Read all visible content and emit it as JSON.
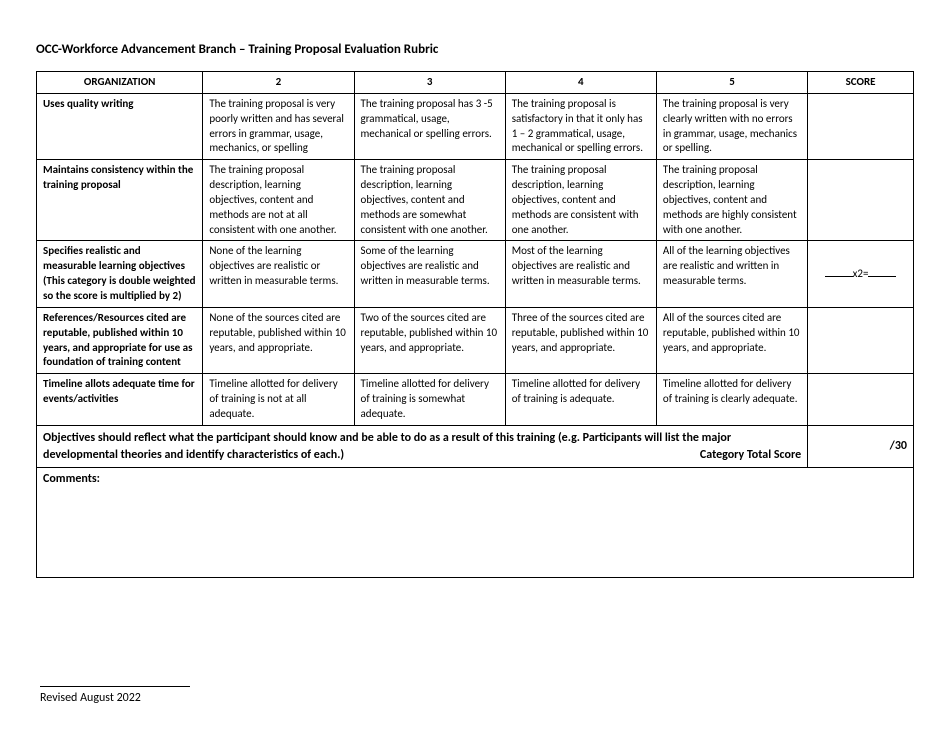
{
  "title": "OCC-Workforce Advancement Branch – Training Proposal Evaluation Rubric",
  "headers": {
    "org": "ORGANIZATION",
    "l2": "2",
    "l3": "3",
    "l4": "4",
    "l5": "5",
    "score": "SCORE"
  },
  "rows": [
    {
      "label": "Uses quality writing",
      "l2": "The training proposal is very poorly written and has several errors in grammar, usage, mechanics, or spelling",
      "l3": "The training proposal has 3 -5 grammatical, usage, mechanical or spelling errors.",
      "l4": "The training proposal is satisfactory in that it only has 1 – 2 grammatical, usage, mechanical or spelling errors.",
      "l5": "The training proposal is very clearly written with no errors in grammar, usage, mechanics or spelling.",
      "score_special": false
    },
    {
      "label": "Maintains consistency within the training proposal",
      "l2": "The training proposal description, learning objectives, content and methods are not at all consistent with one another.",
      "l3": "The training proposal description, learning objectives, content and methods are somewhat consistent with one another.",
      "l4": "The training proposal description, learning objectives, content and methods are consistent with one another.",
      "l5": "The training proposal description, learning objectives, content and methods are highly consistent with one another.",
      "score_special": false
    },
    {
      "label": "Specifies realistic and measurable learning objectives\n(This category is double weighted so the score is multiplied by 2)",
      "l2": "None of the learning objectives are realistic or written in measurable terms.",
      "l3": "Some of the learning objectives are realistic and written in measurable terms.",
      "l4": "Most of the learning objectives are realistic and written in measurable terms.",
      "l5": "All of the learning objectives are realistic and written in measurable terms.",
      "score_special": true,
      "score_text": "x2="
    },
    {
      "label": "References/Resources cited are reputable, published within 10 years, and appropriate for use as foundation of training content",
      "l2": "None of the sources cited are reputable, published within 10 years, and appropriate.",
      "l3": "Two of the sources cited are reputable, published within 10 years, and appropriate.",
      "l4": "Three of the sources cited are reputable, published within 10 years, and appropriate.",
      "l5": "All of the sources cited are reputable, published within 10 years, and appropriate.",
      "score_special": false
    },
    {
      "label": "Timeline allots adequate time for events/activities",
      "l2": "Timeline allotted for delivery of training is not at all adequate.",
      "l3": "Timeline allotted for delivery of training is somewhat adequate.",
      "l4": "Timeline allotted for delivery of training is adequate.",
      "l5": "Timeline allotted for delivery of training is clearly adequate.",
      "score_special": false
    }
  ],
  "note": "Objectives should reflect what the participant should know and be able to do as a result of this training (e.g. Participants will list the major developmental theories and identify characteristics of each.)",
  "category_total_label": "Category Total Score",
  "total": "/30",
  "comments_label": "Comments:",
  "footer": "Revised August 2022"
}
